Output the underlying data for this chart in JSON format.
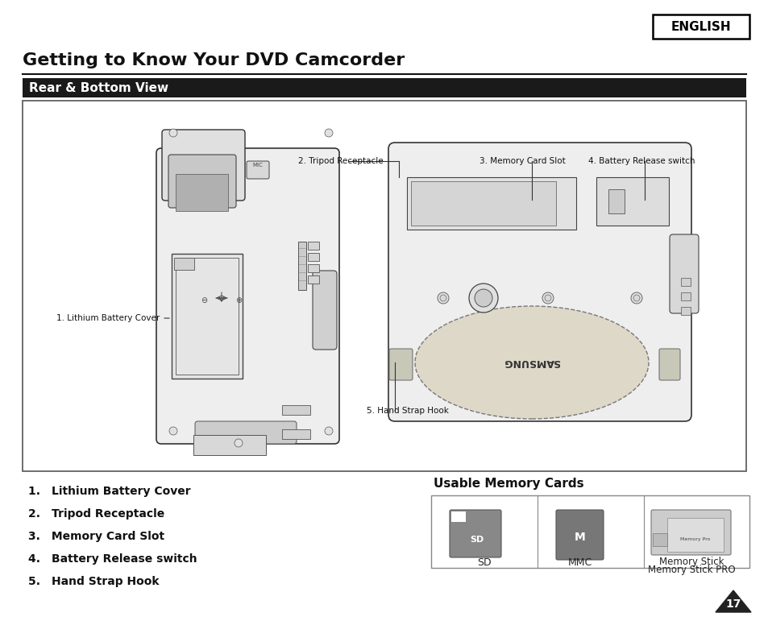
{
  "page_bg": "#ffffff",
  "english_label": "ENGLISH",
  "main_title": "Getting to Know Your DVD Camcorder",
  "section_title": "Rear & Bottom View",
  "section_bg": "#1a1a1a",
  "section_text_color": "#ffffff",
  "numbered_items": [
    "Lithium Battery Cover",
    "Tripod Receptacle",
    "Memory Card Slot",
    "Battery Release switch",
    "Hand Strap Hook"
  ],
  "usable_memory_title": "Usable Memory Cards",
  "memory_card_labels": [
    "SD",
    "MMC",
    "Memory Stick\nMemory Stick PRO"
  ],
  "page_number": "17",
  "ann_label1": "1. Lithium Battery Cover",
  "ann_label2": "2. Tripod Receptacle",
  "ann_label3": "3. Memory Card Slot",
  "ann_label4": "4. Battery Release switch",
  "ann_label5": "5. Hand Strap Hook"
}
